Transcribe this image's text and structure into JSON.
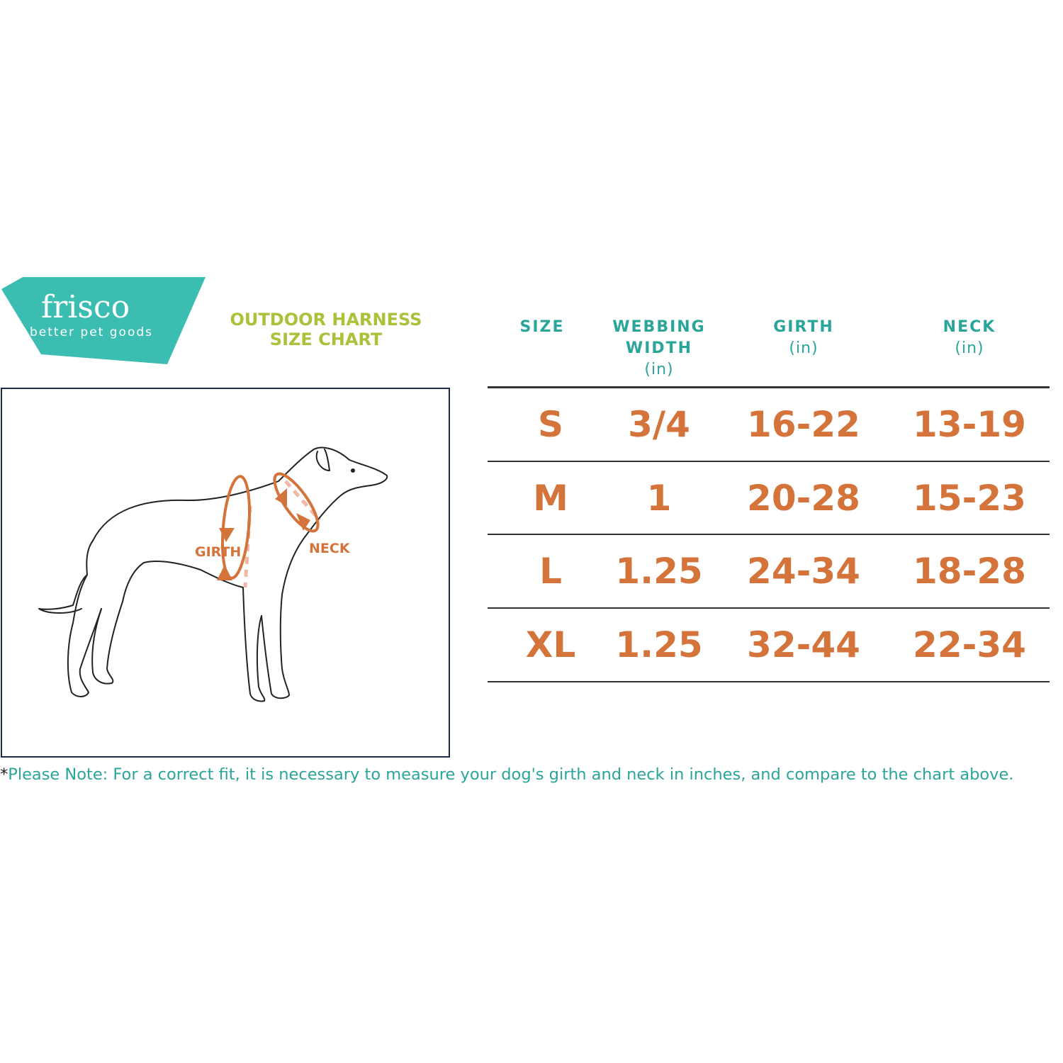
{
  "brand": {
    "name": "frisco",
    "tagline": "better pet goods",
    "color": "#3bbdb2"
  },
  "title": {
    "line1": "OUTDOOR HARNESS",
    "line2": "SIZE CHART",
    "color": "#a9c23a"
  },
  "diagram": {
    "girth_label": "GIRTH",
    "neck_label": "NECK",
    "arrow_color": "#d4733a"
  },
  "table": {
    "headers": [
      {
        "label": "SIZE",
        "unit": ""
      },
      {
        "label": "WEBBING WIDTH",
        "unit": "(in)"
      },
      {
        "label": "GIRTH",
        "unit": "(in)"
      },
      {
        "label": "NECK",
        "unit": "(in)"
      }
    ],
    "rows": [
      [
        "S",
        "3/4",
        "16-22",
        "13-19"
      ],
      [
        "M",
        "1",
        "20-28",
        "15-23"
      ],
      [
        "L",
        "1.25",
        "24-34",
        "18-28"
      ],
      [
        "XL",
        "1.25",
        "32-44",
        "22-34"
      ]
    ],
    "header_color": "#2aa59a",
    "value_color": "#d4733a"
  },
  "note": {
    "asterisk": "*",
    "text": "Please Note: For a correct fit, it is necessary to measure your dog's girth and neck in inches, and compare to the chart above."
  }
}
